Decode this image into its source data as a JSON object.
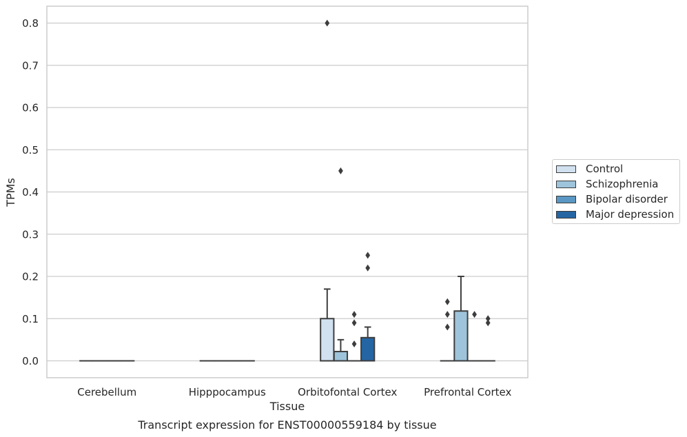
{
  "chart_data": {
    "type": "box",
    "title": "Transcript expression for ENST00000559184 by tissue",
    "xlabel": "Tissue",
    "ylabel": "TPMs",
    "ylim": [
      -0.04,
      0.84
    ],
    "yticks": [
      "0.0",
      "0.1",
      "0.2",
      "0.3",
      "0.4",
      "0.5",
      "0.6",
      "0.7",
      "0.8"
    ],
    "categories": [
      "Cerebellum",
      "Hipppocampus",
      "Orbitofontal Cortex",
      "Prefrontal Cortex"
    ],
    "grid": "horizontal",
    "legend_position": "center-right",
    "series": [
      {
        "name": "Control",
        "color": "#d1e1f0",
        "boxes": [
          {
            "q1": 0,
            "median": 0,
            "q3": 0,
            "whislo": 0,
            "whishi": 0,
            "fliers": []
          },
          {
            "q1": 0,
            "median": 0,
            "q3": 0,
            "whislo": 0,
            "whishi": 0,
            "fliers": []
          },
          {
            "q1": 0,
            "median": 0,
            "q3": 0.1,
            "whislo": 0,
            "whishi": 0.17,
            "fliers": [
              0.8
            ]
          },
          {
            "q1": 0,
            "median": 0,
            "q3": 0,
            "whislo": 0,
            "whishi": 0,
            "fliers": [
              0.08,
              0.11,
              0.14
            ]
          }
        ]
      },
      {
        "name": "Schizophrenia",
        "color": "#9dc4db",
        "boxes": [
          {
            "q1": 0,
            "median": 0,
            "q3": 0,
            "whislo": 0,
            "whishi": 0,
            "fliers": []
          },
          {
            "q1": 0,
            "median": 0,
            "q3": 0,
            "whislo": 0,
            "whishi": 0,
            "fliers": []
          },
          {
            "q1": 0,
            "median": 0,
            "q3": 0.022,
            "whislo": 0,
            "whishi": 0.05,
            "fliers": [
              0.45
            ]
          },
          {
            "q1": 0,
            "median": 0,
            "q3": 0.118,
            "whislo": 0,
            "whishi": 0.2,
            "fliers": []
          }
        ]
      },
      {
        "name": "Bipolar disorder",
        "color": "#5a97c4",
        "boxes": [
          {
            "q1": 0,
            "median": 0,
            "q3": 0,
            "whislo": 0,
            "whishi": 0,
            "fliers": []
          },
          {
            "q1": 0,
            "median": 0,
            "q3": 0,
            "whislo": 0,
            "whishi": 0,
            "fliers": []
          },
          {
            "q1": 0,
            "median": 0,
            "q3": 0,
            "whislo": 0,
            "whishi": 0,
            "fliers": [
              0.04,
              0.09,
              0.11
            ]
          },
          {
            "q1": 0,
            "median": 0,
            "q3": 0,
            "whislo": 0,
            "whishi": 0,
            "fliers": [
              0.11
            ]
          }
        ]
      },
      {
        "name": "Major depression",
        "color": "#2565a3",
        "boxes": [
          {
            "q1": 0,
            "median": 0,
            "q3": 0,
            "whislo": 0,
            "whishi": 0,
            "fliers": []
          },
          {
            "q1": 0,
            "median": 0,
            "q3": 0,
            "whislo": 0,
            "whishi": 0,
            "fliers": []
          },
          {
            "q1": 0,
            "median": 0,
            "q3": 0.055,
            "whislo": 0,
            "whishi": 0.08,
            "fliers": [
              0.22,
              0.25
            ]
          },
          {
            "q1": 0,
            "median": 0,
            "q3": 0,
            "whislo": 0,
            "whishi": 0,
            "fliers": [
              0.09,
              0.1
            ]
          }
        ]
      }
    ]
  }
}
